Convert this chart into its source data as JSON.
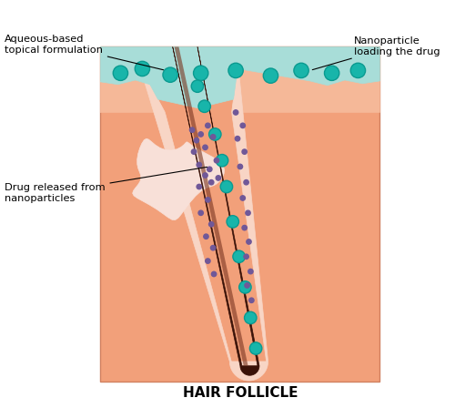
{
  "skin_color": "#F2A07A",
  "skin_light": "#F5B898",
  "follicle_sheath_color": "#F8D5C5",
  "follicle_inner_color": "#FAE0D5",
  "hair_dark": "#3A1208",
  "hair_highlight": "#7A3520",
  "aqueous_color": "#A8DDD8",
  "aqueous_outline": "#70C5C0",
  "nanoparticle_color": "#18B5AA",
  "nanoparticle_outline": "#0A9A90",
  "drug_color": "#705898",
  "sebaceous_color": "#F8E0D8",
  "title": "HAIR FOLLICLE",
  "label_aqueous": "Aqueous-based\ntopical formulation",
  "label_nano": "Nanoparticle\nloading the drug",
  "label_drug": "Drug released from\nnanoparticles",
  "bg_color": "#FFFFFF"
}
